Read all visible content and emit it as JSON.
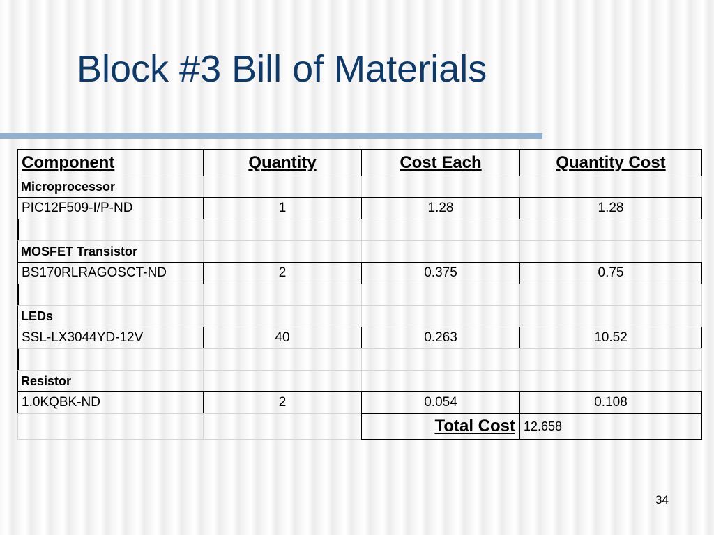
{
  "title": "Block #3 Bill of Materials",
  "table": {
    "header": [
      "Component",
      "Quantity",
      "Cost Each",
      "Quantity Cost"
    ],
    "sections": [
      {
        "name": "Microprocessor",
        "items": [
          [
            "PIC12F509-I/P-ND",
            "1",
            "1.28",
            "1.28"
          ]
        ]
      },
      {
        "name": "MOSFET Transistor",
        "items": [
          [
            "BS170RLRAGOSCT-ND",
            "2",
            "0.375",
            "0.75"
          ]
        ]
      },
      {
        "name": "LEDs",
        "items": [
          [
            "SSL-LX3044YD-12V",
            "40",
            "0.263",
            "10.52"
          ]
        ]
      },
      {
        "name": "Resistor",
        "items": [
          [
            "1.0KQBK-ND",
            "2",
            "0.054",
            "0.108"
          ]
        ]
      }
    ],
    "total": {
      "label": "Total Cost",
      "value": "12.658"
    }
  },
  "page_number": "34"
}
